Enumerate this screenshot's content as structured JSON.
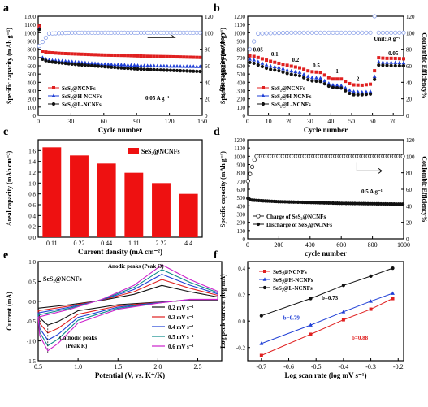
{
  "chart_data": [
    {
      "panel": "a",
      "type": "scatter",
      "xlabel": "Cycle number",
      "ylabel": "Specific capacity (mAh g⁻¹)",
      "y2label": "Coulombic Efficiency%",
      "xlim": [
        0,
        150
      ],
      "ylim": [
        0,
        1200
      ],
      "y2lim": [
        0,
        120
      ],
      "xticks": [
        "0",
        "30",
        "60",
        "90",
        "120",
        "150"
      ],
      "yticks": [
        "0",
        "100",
        "200",
        "300",
        "400",
        "500",
        "600",
        "700",
        "800",
        "900",
        "1000",
        "1100",
        "1200"
      ],
      "y2ticks": [
        "0",
        "20",
        "40",
        "60",
        "80",
        "100",
        "120"
      ],
      "annotation": "0.05 A g⁻¹",
      "legend": [
        "SeS₂@NCNFs",
        "SeS₂@H-NCNFs",
        "SeS₂@L-NCNFs"
      ],
      "series": [
        {
          "name": "SeS₂@NCNFs",
          "color": "#e02020",
          "x": [
            1,
            2,
            5,
            10,
            20,
            40,
            60,
            80,
            100,
            120,
            150
          ],
          "y": [
            1080,
            790,
            770,
            760,
            750,
            740,
            730,
            725,
            715,
            710,
            700
          ]
        },
        {
          "name": "SeS₂@H-NCNFs",
          "color": "#1f3fd6",
          "x": [
            1,
            2,
            5,
            10,
            20,
            40,
            60,
            80,
            100,
            120,
            150
          ],
          "y": [
            1050,
            720,
            690,
            670,
            660,
            640,
            620,
            610,
            600,
            595,
            590
          ]
        },
        {
          "name": "SeS₂@L-NCNFs",
          "color": "#111111",
          "x": [
            1,
            2,
            5,
            10,
            20,
            40,
            60,
            80,
            100,
            120,
            150
          ],
          "y": [
            1040,
            700,
            670,
            650,
            635,
            610,
            590,
            570,
            555,
            545,
            530
          ]
        },
        {
          "name": "CE",
          "color": "#8aa0e8",
          "axis": "y2",
          "x": [
            1,
            10,
            30,
            60,
            90,
            120,
            150
          ],
          "y": [
            84,
            99,
            100,
            100,
            100,
            100,
            100
          ]
        }
      ]
    },
    {
      "panel": "b",
      "type": "scatter",
      "xlabel": "Cycle number",
      "ylabel": "Specific capacity (mAh g⁻¹)",
      "y2label": "Coulombic Efficiency%",
      "xlim": [
        0,
        75
      ],
      "ylim": [
        0,
        1200
      ],
      "y2lim": [
        0,
        120
      ],
      "xticks": [
        "0",
        "10",
        "20",
        "30",
        "40",
        "50",
        "60",
        "70"
      ],
      "unit_label": "Unit: A g⁻¹",
      "rate_labels": [
        "0.05",
        "0.1",
        "0.2",
        "0.5",
        "1",
        "2",
        "0.05"
      ],
      "legend": [
        "SeS₂@NCNFs",
        "SeS₂@H-NCNFs",
        "SeS₂@L-NCNFs"
      ],
      "series": [
        {
          "name": "SeS₂@NCNFs",
          "color": "#e02020",
          "x": [
            2,
            5,
            10,
            15,
            20,
            25,
            30,
            35,
            40,
            45,
            50,
            55,
            60,
            62,
            66,
            70,
            75
          ],
          "y": [
            720,
            700,
            660,
            630,
            600,
            575,
            530,
            520,
            440,
            440,
            370,
            365,
            380,
            700,
            690,
            690,
            685
          ]
        },
        {
          "name": "SeS₂@H-NCNFs",
          "color": "#1f3fd6",
          "x": [
            2,
            5,
            10,
            15,
            20,
            25,
            30,
            35,
            40,
            45,
            50,
            55,
            60,
            62,
            66,
            70,
            75
          ],
          "y": [
            680,
            650,
            600,
            580,
            540,
            520,
            460,
            450,
            370,
            360,
            290,
            280,
            290,
            650,
            640,
            640,
            635
          ]
        },
        {
          "name": "SeS₂@L-NCNFs",
          "color": "#111111",
          "x": [
            2,
            5,
            10,
            15,
            20,
            25,
            30,
            35,
            40,
            45,
            50,
            55,
            60,
            62,
            66,
            70,
            75
          ],
          "y": [
            640,
            610,
            560,
            540,
            500,
            480,
            420,
            410,
            340,
            330,
            250,
            250,
            260,
            610,
            605,
            600,
            600
          ]
        },
        {
          "name": "CE",
          "color": "#8aa0e8",
          "axis": "y2",
          "x": [
            1,
            5,
            20,
            40,
            60,
            61,
            62,
            75
          ],
          "y": [
            80,
            99,
            100,
            100,
            100,
            120,
            100,
            100
          ]
        }
      ]
    },
    {
      "panel": "c",
      "type": "bar",
      "xlabel": "Current density (mA cm⁻²)",
      "ylabel": "Areal capacity (mAh cm⁻²)",
      "categories": [
        "0.11",
        "0.22",
        "0.44",
        "1.11",
        "2.22",
        "4.4"
      ],
      "values": [
        1.66,
        1.51,
        1.36,
        1.19,
        1.0,
        0.8
      ],
      "ylim": [
        0,
        1.8
      ],
      "yticks": [
        "0.0",
        "0.2",
        "0.4",
        "0.6",
        "0.8",
        "1.0",
        "1.2",
        "1.4",
        "1.6"
      ],
      "legend": [
        "SeS₂@NCNFs"
      ],
      "color": "#ee1111"
    },
    {
      "panel": "d",
      "type": "scatter",
      "xlabel": "cycle number",
      "ylabel": "Specific capacity (mAh g⁻¹)",
      "y2label": "Coulombic Efficiency%",
      "xlim": [
        0,
        1000
      ],
      "ylim": [
        0,
        1200
      ],
      "y2lim": [
        0,
        120
      ],
      "xticks": [
        "0",
        "200",
        "400",
        "600",
        "800",
        "1000"
      ],
      "annotation": "0.5 A g⁻¹",
      "legend": [
        "Charge of SeS₂@NCNFs",
        "Discharge of SeS₂@NCNFs"
      ],
      "series": [
        {
          "name": "Charge of SeS₂@NCNFs",
          "color": "#222222",
          "axis": "y2",
          "x": [
            1,
            50,
            200,
            400,
            600,
            800,
            1000
          ],
          "y": [
            70,
            100,
            100,
            100,
            100,
            100,
            100
          ]
        },
        {
          "name": "Discharge of SeS₂@NCNFs",
          "color": "#111111",
          "x": [
            1,
            20,
            100,
            200,
            400,
            600,
            800,
            1000
          ],
          "y": [
            490,
            470,
            460,
            450,
            440,
            430,
            425,
            420
          ]
        }
      ]
    },
    {
      "panel": "e",
      "type": "line",
      "xlabel": "Potential (V, vs. K⁺/K)",
      "ylabel": "Current (mA)",
      "xlim": [
        0.5,
        2.8
      ],
      "ylim": [
        -1.5,
        1.0
      ],
      "xticks": [
        "0.5",
        "1.0",
        "1.5",
        "2.0",
        "2.5"
      ],
      "yticks": [
        "-1.5",
        "-1.0",
        "-0.5",
        "0.0",
        "0.5",
        "1.0"
      ],
      "sample_label": "SeS₂@NCNFs",
      "anodic_label": "Anodic peaks (Peak O)",
      "cathodic_label": "Cathodic peaks",
      "cathodic_label2": "(Peak R)",
      "legend": [
        "0.2 mV s⁻¹",
        "0.3 mV s⁻¹",
        "0.4 mV s⁻¹",
        "0.5 mV s⁻¹",
        "0.6 mV s⁻¹"
      ],
      "series": [
        {
          "name": "0.2 mV s⁻¹",
          "color": "#111111",
          "ipa": 0.4,
          "ipc": -0.6
        },
        {
          "name": "0.3 mV s⁻¹",
          "color": "#e02020",
          "ipa": 0.55,
          "ipc": -0.8
        },
        {
          "name": "0.4 mV s⁻¹",
          "color": "#1f3fd6",
          "ipa": 0.68,
          "ipc": -0.98
        },
        {
          "name": "0.5 mV s⁻¹",
          "color": "#0c8a8a",
          "ipa": 0.8,
          "ipc": -1.12
        },
        {
          "name": "0.6 mV s⁻¹",
          "color": "#cc22cc",
          "ipa": 0.92,
          "ipc": -1.25
        }
      ]
    },
    {
      "panel": "f",
      "type": "line",
      "xlabel": "Log scan rate (log mV s⁻¹)",
      "ylabel": "Log peak current (log mA)",
      "xlim": [
        -0.75,
        -0.18
      ],
      "ylim": [
        -0.3,
        0.45
      ],
      "xticks": [
        "-0.7",
        "-0.6",
        "-0.5",
        "-0.4",
        "-0.3",
        "-0.2"
      ],
      "yticks": [
        "-0.2",
        "0.0",
        "0.2",
        "0.4"
      ],
      "legend": [
        "SeS₂@NCNFs",
        "SeS₂@H-NCNFs",
        "SeS₂@L-NCNFs"
      ],
      "slope_labels": [
        "b=0.73",
        "b=0.79",
        "b=0.88"
      ],
      "series": [
        {
          "name": "SeS₂@NCNFs",
          "color": "#e02020",
          "x": [
            -0.7,
            -0.52,
            -0.4,
            -0.3,
            -0.22
          ],
          "y": [
            -0.26,
            -0.1,
            0.01,
            0.09,
            0.17
          ]
        },
        {
          "name": "SeS₂@H-NCNFs",
          "color": "#1f3fd6",
          "x": [
            -0.7,
            -0.52,
            -0.4,
            -0.3,
            -0.22
          ],
          "y": [
            -0.17,
            -0.03,
            0.07,
            0.15,
            0.21
          ]
        },
        {
          "name": "SeS₂@L-NCNFs",
          "color": "#111111",
          "x": [
            -0.7,
            -0.52,
            -0.4,
            -0.3,
            -0.22
          ],
          "y": [
            0.04,
            0.17,
            0.27,
            0.34,
            0.4
          ]
        }
      ]
    }
  ],
  "panel_letters": [
    "a",
    "b",
    "c",
    "d",
    "e",
    "f"
  ]
}
